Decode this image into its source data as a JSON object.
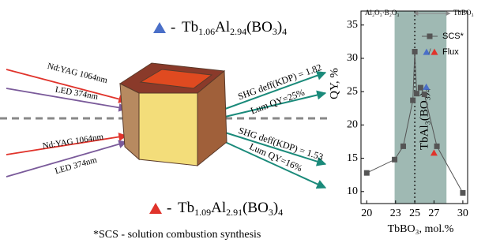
{
  "diagram": {
    "formula_top": [
      "Tb",
      "1.06",
      "Al",
      "2.94",
      "(BO",
      "3",
      ")",
      "4"
    ],
    "formula_bottom": [
      "Tb",
      "1.09",
      "Al",
      "2.91",
      "(BO",
      "3",
      ")",
      "4"
    ],
    "dash": "-",
    "laser_top": "Nd:YAG 1064nm",
    "led_top": "LED 374nm",
    "laser_bottom": "Nd:YAG 1064nm",
    "led_bottom": "LED 374nm",
    "shg_top": "SHG deff(KDP) = 1.82",
    "lum_top": "Lum QY=25%",
    "shg_bottom": "SHG deff(KDP) = 1.53",
    "lum_bottom": "Lum QY=16%",
    "footnote": "*SCS - solution combustion synthesis"
  },
  "chart_data": {
    "type": "scatter",
    "xlabel": "TbBO₃, mol.%",
    "ylabel": "QY, %",
    "annotation_left": "Al₂O₃·B₂O₃",
    "annotation_right": "TbBO₃",
    "phase_label": "TbAl₃(BO₃)₄",
    "band": [
      22.9,
      28.3
    ],
    "vline": 25,
    "band_color": "#9fb9b3",
    "xlim": [
      19.4,
      30.5
    ],
    "ylim": [
      8.2,
      37.1
    ],
    "xticks": [
      20,
      23,
      25,
      27,
      30
    ],
    "yticks": [
      10,
      15,
      20,
      25,
      30,
      35
    ],
    "series": [
      {
        "name": "SCS*",
        "color": "#555555",
        "x": [
          20,
          22.9,
          23.8,
          24.8,
          25,
          25.2,
          25.6,
          26,
          27.3,
          30
        ],
        "values": [
          12.8,
          14.8,
          16.8,
          23.7,
          31,
          24.7,
          25.6,
          24.6,
          16.8,
          9.8
        ]
      },
      {
        "name": "Flux",
        "colors": [
          "#4a6fc8",
          "#e0332b"
        ],
        "x": [
          26.2,
          27
        ],
        "values": [
          25.7,
          15.8
        ]
      }
    ]
  }
}
